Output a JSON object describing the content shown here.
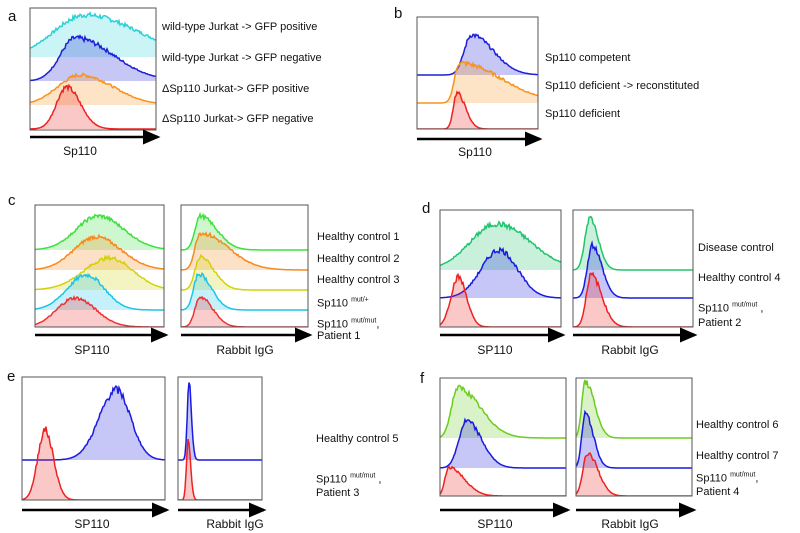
{
  "chart_data": {
    "type": "histogram-overlay",
    "note": "Flow cytometry offset histograms; peak/spread values in percent of the x-axis range (log fluorescence)",
    "panels": [
      {
        "letter": "a",
        "plots": [
          {
            "xlabel": "Sp110",
            "series": [
              {
                "name": "wild-type Jurkat -> GFP positive",
                "color": "#2ad2d6",
                "peak": 44,
                "sl": 25,
                "sr": 42
              },
              {
                "name": "wild-type Jurkat -> GFP negative",
                "color": "#1f1fd6",
                "peak": 36,
                "sl": 12,
                "sr": 30
              },
              {
                "name": "ΔSp110 Jurkat-> GFP positive",
                "color": "#f7931e",
                "peak": 40,
                "sl": 18,
                "sr": 26
              },
              {
                "name": "ΔSp110 Jurkat-> GFP negative",
                "color": "#ee2222",
                "peak": 29,
                "sl": 8,
                "sr": 11
              }
            ]
          }
        ]
      },
      {
        "letter": "b",
        "plots": [
          {
            "xlabel": "Sp110",
            "series": [
              {
                "name": "Sp110 competent",
                "color": "#1f1fd6",
                "peak": 45,
                "sl": 6,
                "sr": 18
              },
              {
                "name": "Sp110 deficient -> reconstituted",
                "color": "#f7931e",
                "peak": 35,
                "sl": 4,
                "sr": 35
              },
              {
                "name": "Sp110 deficient",
                "color": "#ee2222",
                "peak": 33,
                "sl": 3,
                "sr": 7
              }
            ]
          }
        ]
      },
      {
        "letter": "c",
        "plots": [
          {
            "xlabel": "SP110",
            "series": [
              {
                "name": "Healthy control 1",
                "color": "#3ee03e",
                "peak": 49,
                "sl": 17,
                "sr": 20
              },
              {
                "name": "Healthy control 2",
                "color": "#f7891e",
                "peak": 47,
                "sl": 17,
                "sr": 20
              },
              {
                "name": "Healthy control 3",
                "color": "#d2d20c",
                "peak": 58,
                "sl": 20,
                "sr": 18
              },
              {
                "name": "Sp110 mut/+",
                "color": "#1cc4ea",
                "peak": 40,
                "sl": 15,
                "sr": 14
              },
              {
                "name": "Sp110 mut/mut, Patient 1",
                "color": "#ee3333",
                "peak": 31,
                "sl": 14,
                "sr": 16
              }
            ]
          },
          {
            "xlabel": "Rabbit IgG",
            "series": [
              {
                "name": "Healthy control 1",
                "color": "#3ee03e",
                "peak": 15,
                "sl": 4,
                "sr": 13
              },
              {
                "name": "Healthy control 2",
                "color": "#f7891e",
                "peak": 15,
                "sl": 4,
                "sr": 22
              },
              {
                "name": "Healthy control 3",
                "color": "#d2d20c",
                "peak": 15,
                "sl": 4,
                "sr": 11
              },
              {
                "name": "Sp110 mut/+",
                "color": "#1cc4ea",
                "peak": 14,
                "sl": 4,
                "sr": 10
              },
              {
                "name": "Sp110 mut/mut, Patient 1",
                "color": "#ee3333",
                "peak": 15,
                "sl": 4,
                "sr": 10
              }
            ]
          }
        ]
      },
      {
        "letter": "d",
        "plots": [
          {
            "xlabel": "SP110",
            "series": [
              {
                "name": "Disease control",
                "color": "#22c46e",
                "peak": 47,
                "sl": 22,
                "sr": 28
              },
              {
                "name": "Healthy control 4",
                "color": "#1a1ae0",
                "peak": 49,
                "sl": 15,
                "sr": 15
              },
              {
                "name": "Sp110 mut/mut, Patient 2",
                "color": "#ee2222",
                "peak": 15,
                "sl": 6,
                "sr": 7
              }
            ]
          },
          {
            "xlabel": "Rabbit IgG",
            "series": [
              {
                "name": "Disease control",
                "color": "#22c46e",
                "peak": 14,
                "sl": 4,
                "sr": 7
              },
              {
                "name": "Healthy control 4",
                "color": "#1a1ae0",
                "peak": 16,
                "sl": 4,
                "sr": 8
              },
              {
                "name": "Sp110 mut/mut, Patient 2",
                "color": "#ee2222",
                "peak": 15,
                "sl": 4,
                "sr": 9
              }
            ]
          }
        ]
      },
      {
        "letter": "e",
        "plots": [
          {
            "xlabel": "SP110",
            "series": [
              {
                "name": "Healthy control 5",
                "color": "#1a1ae0",
                "peak": 66,
                "sl": 12,
                "sr": 10
              },
              {
                "name": "Sp110 mut/mut, Patient 3",
                "color": "#ee2222",
                "peak": 16,
                "sl": 5,
                "sr": 6
              }
            ]
          },
          {
            "xlabel": "Rabbit IgG",
            "series": [
              {
                "name": "Healthy control 5",
                "color": "#1a1ae0",
                "peak": 13,
                "sl": 2,
                "sr": 3
              },
              {
                "name": "Sp110 mut/mut, Patient 3",
                "color": "#ee2222",
                "peak": 12,
                "sl": 2,
                "sr": 3
              }
            ]
          }
        ]
      },
      {
        "letter": "f",
        "plots": [
          {
            "xlabel": "SP110",
            "series": [
              {
                "name": "Healthy control 6",
                "color": "#6ccc1f",
                "peak": 14,
                "sl": 5,
                "sr": 18
              },
              {
                "name": "Healthy control 7",
                "color": "#1a1ae0",
                "peak": 21,
                "sl": 6,
                "sr": 12
              },
              {
                "name": "Sp110 mut/mut, Patient 4",
                "color": "#ee2222",
                "peak": 7,
                "sl": 3,
                "sr": 12
              }
            ]
          },
          {
            "xlabel": "Rabbit IgG",
            "series": [
              {
                "name": "Healthy control 6",
                "color": "#6ccc1f",
                "peak": 8,
                "sl": 3,
                "sr": 8
              },
              {
                "name": "Healthy control 7",
                "color": "#1a1ae0",
                "peak": 8,
                "sl": 3,
                "sr": 7
              },
              {
                "name": "Sp110 mut/mut, Patient 4",
                "color": "#ee2222",
                "peak": 10,
                "sl": 4,
                "sr": 9
              }
            ]
          }
        ]
      }
    ]
  },
  "labels": {
    "a": [
      "wild-type Jurkat -> GFP positive",
      "wild-type Jurkat -> GFP negative",
      "ΔSp110 Jurkat-> GFP positive",
      "ΔSp110 Jurkat-> GFP negative"
    ],
    "b": [
      "Sp110 competent",
      "Sp110 deficient -> reconstituted",
      "Sp110 deficient"
    ],
    "c": [
      "Healthy control 1",
      "Healthy control 2",
      "Healthy control 3"
    ],
    "d": [
      "Disease control",
      "Healthy control 4"
    ],
    "e": [
      "Healthy control 5"
    ],
    "f": [
      "Healthy control 6",
      "Healthy control 7"
    ],
    "sp110": "Sp110",
    "sup_het": "mut/+",
    "sup_hom": "mut/mut",
    "comma": ",",
    "patient1": "Patient 1",
    "patient2": "Patient 2",
    "patient3": "Patient 3",
    "patient4": "Patient 4"
  }
}
